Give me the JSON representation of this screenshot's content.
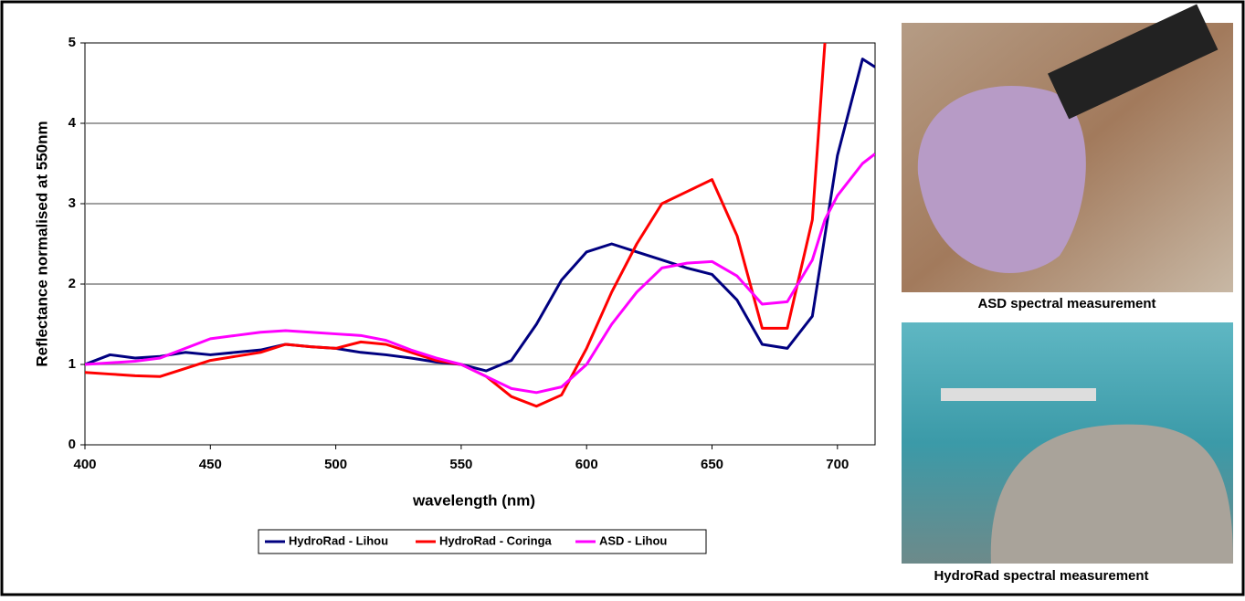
{
  "chart_data": {
    "type": "line",
    "x_label": "wavelength (nm)",
    "y_label": "Reflectance normalised at 550nm",
    "x": [
      400,
      410,
      420,
      430,
      440,
      450,
      460,
      470,
      480,
      490,
      500,
      510,
      520,
      530,
      540,
      550,
      560,
      570,
      580,
      590,
      600,
      610,
      620,
      630,
      640,
      650,
      660,
      670,
      680,
      690,
      695,
      700,
      710,
      715
    ],
    "series": [
      {
        "name": "HydroRad - Lihou",
        "color": "#000080",
        "values": [
          1.0,
          1.12,
          1.08,
          1.1,
          1.15,
          1.12,
          1.15,
          1.18,
          1.25,
          1.22,
          1.2,
          1.15,
          1.12,
          1.08,
          1.03,
          1.0,
          0.92,
          1.05,
          1.5,
          2.05,
          2.4,
          2.5,
          2.4,
          2.3,
          2.2,
          2.12,
          1.8,
          1.25,
          1.2,
          1.6,
          2.6,
          3.6,
          4.8,
          4.7
        ]
      },
      {
        "name": "HydroRad - Coringa",
        "color": "#ff0000",
        "values": [
          0.9,
          0.88,
          0.86,
          0.85,
          0.95,
          1.05,
          1.1,
          1.15,
          1.25,
          1.22,
          1.2,
          1.28,
          1.25,
          1.15,
          1.05,
          1.0,
          0.85,
          0.6,
          0.48,
          0.62,
          1.2,
          1.9,
          2.5,
          3.0,
          3.15,
          3.3,
          2.6,
          1.45,
          1.45,
          2.8,
          5.0,
          null,
          null,
          null
        ]
      },
      {
        "name": "ASD - Lihou",
        "color": "#ff00ff",
        "values": [
          1.0,
          1.02,
          1.04,
          1.08,
          1.2,
          1.32,
          1.36,
          1.4,
          1.42,
          1.4,
          1.38,
          1.36,
          1.3,
          1.18,
          1.08,
          1.0,
          0.85,
          0.7,
          0.65,
          0.72,
          1.0,
          1.5,
          1.9,
          2.2,
          2.26,
          2.28,
          2.1,
          1.75,
          1.78,
          2.3,
          2.8,
          3.1,
          3.5,
          3.62
        ]
      }
    ],
    "xlim": [
      400,
      715
    ],
    "xticks": [
      400,
      450,
      500,
      550,
      600,
      650,
      700
    ],
    "ylim": [
      0,
      5
    ],
    "yticks": [
      0,
      1,
      2,
      3,
      4,
      5
    ],
    "grid": true,
    "legend": "bottom",
    "captions": [
      "ASD spectral measurement",
      "HydroRad spectral measurement"
    ]
  }
}
